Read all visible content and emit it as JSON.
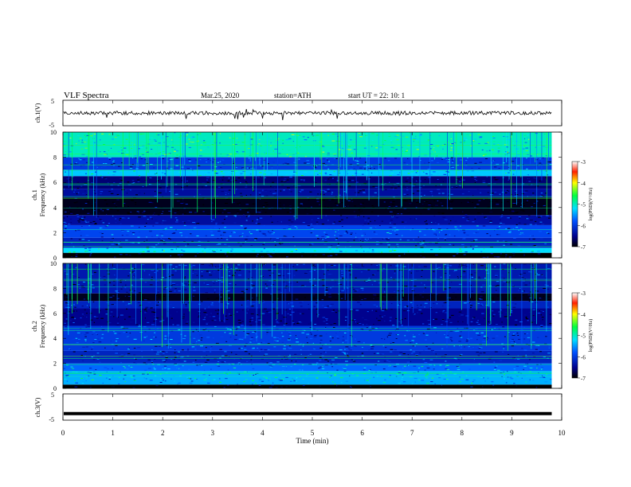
{
  "header": {
    "title": "VLF  Spectra",
    "date": "Mar.25, 2020",
    "station": "station=ATH",
    "start_ut": "start  UT  =    22: 10: 1"
  },
  "chart_data": [
    {
      "type": "line",
      "panel": "ch1-waveform",
      "ylabel": "ch.1(V)",
      "ylim": [
        -5,
        5
      ],
      "yticks": [
        "5",
        "-5"
      ],
      "x_range_min": [
        0,
        9.8
      ],
      "series": [
        {
          "values_description_level": 0
        }
      ],
      "color": "#000000"
    },
    {
      "type": "heatmap",
      "panel": "ch1-spectrogram",
      "ylabel": "ch.1\nFrequency  (kHz)",
      "ylim": [
        0,
        10
      ],
      "yticks": [
        "0",
        "2",
        "4",
        "6",
        "8",
        "10"
      ],
      "x_range_min": [
        0,
        9.8
      ],
      "colorbar": {
        "label": "log(PSD)(V²/Hz)",
        "ticks": [
          "-3",
          "-4",
          "-5",
          "-6",
          "-7"
        ],
        "range": [
          -7,
          -3
        ]
      },
      "bands_khz": [
        {
          "from": 0,
          "to": 0.4,
          "level": -7
        },
        {
          "from": 0.4,
          "to": 0.8,
          "level": -5.2
        },
        {
          "from": 0.8,
          "to": 1.6,
          "level": -6.2
        },
        {
          "from": 1.6,
          "to": 2.6,
          "level": -5.9
        },
        {
          "from": 2.6,
          "to": 3.4,
          "level": -6.4
        },
        {
          "from": 3.4,
          "to": 4.8,
          "level": -6.9
        },
        {
          "from": 4.8,
          "to": 5.5,
          "level": -6.4
        },
        {
          "from": 5.5,
          "to": 6.5,
          "level": -6.6
        },
        {
          "from": 6.5,
          "to": 7.0,
          "level": -5.3
        },
        {
          "from": 7.0,
          "to": 8.0,
          "level": -6.0
        },
        {
          "from": 8.0,
          "to": 10.0,
          "level": -5.0
        }
      ]
    },
    {
      "type": "heatmap",
      "panel": "ch2-spectrogram",
      "ylabel": "ch.2\nFrequency  (kHz)",
      "ylim": [
        0,
        10
      ],
      "yticks": [
        "0",
        "2",
        "4",
        "6",
        "8",
        "10"
      ],
      "x_range_min": [
        0,
        9.8
      ],
      "colorbar": {
        "label": "log(PSD)(V²/Hz)",
        "ticks": [
          "-3",
          "-4",
          "-5",
          "-6",
          "-7"
        ],
        "range": [
          -7,
          -3
        ]
      },
      "bands_khz": [
        {
          "from": 0,
          "to": 0.3,
          "level": -7
        },
        {
          "from": 0.3,
          "to": 1.4,
          "level": -5.4
        },
        {
          "from": 1.4,
          "to": 2.0,
          "level": -5.7
        },
        {
          "from": 2.0,
          "to": 3.0,
          "level": -6.2
        },
        {
          "from": 3.0,
          "to": 5.0,
          "level": -6.0
        },
        {
          "from": 5.0,
          "to": 6.4,
          "level": -6.5
        },
        {
          "from": 6.4,
          "to": 7.0,
          "level": -6.2
        },
        {
          "from": 7.0,
          "to": 7.6,
          "level": -6.9
        },
        {
          "from": 7.6,
          "to": 10.0,
          "level": -6.3
        }
      ]
    },
    {
      "type": "line",
      "panel": "ch3-waveform",
      "ylabel": "ch.3(V)",
      "ylim": [
        -5,
        5
      ],
      "yticks": [
        "5",
        "-5"
      ],
      "x_range_min": [
        0,
        9.8
      ],
      "series": [
        {
          "level": -2.5
        }
      ],
      "color": "#000000"
    }
  ],
  "x_axis": {
    "label": "Time  (min)",
    "ticks": [
      "0",
      "1",
      "2",
      "3",
      "4",
      "5",
      "6",
      "7",
      "8",
      "9",
      "10"
    ],
    "range": [
      0,
      10
    ]
  }
}
